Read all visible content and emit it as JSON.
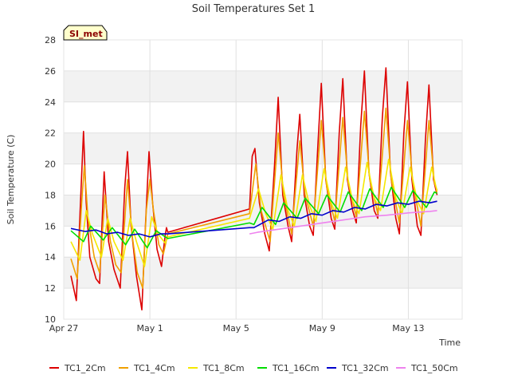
{
  "chart_data": {
    "type": "line",
    "title": "Soil Temperatures Set 1",
    "xlabel": "Time",
    "ylabel": "Soil Temperature (C)",
    "badge": "SI_met",
    "xlim": [
      "2023-04-27",
      "2023-05-15T12:00"
    ],
    "ylim": [
      10,
      28
    ],
    "yticks": [
      10,
      12,
      14,
      16,
      18,
      20,
      22,
      24,
      26,
      28
    ],
    "xticks": [
      {
        "date": "2023-04-27",
        "label": "Apr 27"
      },
      {
        "date": "2023-05-01",
        "label": "May 1"
      },
      {
        "date": "2023-05-05",
        "label": "May 5"
      },
      {
        "date": "2023-05-09",
        "label": "May 9"
      },
      {
        "date": "2023-05-13",
        "label": "May 13"
      }
    ],
    "grid": true,
    "legend_position": "bottom",
    "series": [
      {
        "name": "TC1_2Cm",
        "color": "#dd0000",
        "points": [
          [
            "2023-04-27T08:00",
            12.8
          ],
          [
            "2023-04-27T14:00",
            11.2
          ],
          [
            "2023-04-27T19:00",
            18.0
          ],
          [
            "2023-04-27T22:00",
            22.1
          ],
          [
            "2023-04-28T01:00",
            17.5
          ],
          [
            "2023-04-28T05:00",
            14.0
          ],
          [
            "2023-04-28T12:00",
            12.6
          ],
          [
            "2023-04-28T16:00",
            12.3
          ],
          [
            "2023-04-28T21:00",
            19.5
          ],
          [
            "2023-04-29T02:00",
            15.0
          ],
          [
            "2023-04-29T08:00",
            13.2
          ],
          [
            "2023-04-29T15:00",
            12.0
          ],
          [
            "2023-04-29T20:00",
            18.5
          ],
          [
            "2023-04-29T23:00",
            20.8
          ],
          [
            "2023-04-30T03:00",
            16.0
          ],
          [
            "2023-04-30T09:00",
            12.8
          ],
          [
            "2023-04-30T15:00",
            10.6
          ],
          [
            "2023-04-30T19:00",
            16.0
          ],
          [
            "2023-04-30T23:00",
            20.8
          ],
          [
            "2023-05-01T03:00",
            17.5
          ],
          [
            "2023-05-01T08:00",
            14.5
          ],
          [
            "2023-05-01T13:00",
            13.4
          ],
          [
            "2023-05-01T17:00",
            15.4
          ],
          [
            "2023-05-01T18:30",
            15.9
          ],
          [
            "2023-05-01T20:00",
            15.6
          ],
          [
            "2023-05-05T15:00",
            17.1
          ],
          [
            "2023-05-05T18:00",
            20.5
          ],
          [
            "2023-05-05T21:00",
            21.0
          ],
          [
            "2023-05-06T02:00",
            17.5
          ],
          [
            "2023-05-06T08:00",
            15.5
          ],
          [
            "2023-05-06T13:00",
            14.4
          ],
          [
            "2023-05-06T19:00",
            20.0
          ],
          [
            "2023-05-06T23:00",
            24.3
          ],
          [
            "2023-05-07T04:00",
            18.0
          ],
          [
            "2023-05-07T10:00",
            16.0
          ],
          [
            "2023-05-07T14:00",
            15.0
          ],
          [
            "2023-05-07T20:00",
            21.0
          ],
          [
            "2023-05-07T23:00",
            23.2
          ],
          [
            "2023-05-08T04:00",
            18.0
          ],
          [
            "2023-05-08T10:00",
            16.0
          ],
          [
            "2023-05-08T14:00",
            15.4
          ],
          [
            "2023-05-08T19:00",
            21.0
          ],
          [
            "2023-05-08T23:00",
            25.2
          ],
          [
            "2023-05-09T04:00",
            19.0
          ],
          [
            "2023-05-09T10:00",
            16.5
          ],
          [
            "2023-05-09T14:00",
            15.8
          ],
          [
            "2023-05-09T19:00",
            22.0
          ],
          [
            "2023-05-09T23:00",
            25.5
          ],
          [
            "2023-05-10T04:00",
            19.0
          ],
          [
            "2023-05-10T10:00",
            17.0
          ],
          [
            "2023-05-10T14:00",
            16.2
          ],
          [
            "2023-05-10T19:00",
            22.5
          ],
          [
            "2023-05-10T23:00",
            26.0
          ],
          [
            "2023-05-11T04:00",
            19.5
          ],
          [
            "2023-05-11T10:00",
            17.0
          ],
          [
            "2023-05-11T14:00",
            16.5
          ],
          [
            "2023-05-11T19:00",
            23.0
          ],
          [
            "2023-05-11T23:00",
            26.2
          ],
          [
            "2023-05-12T04:00",
            19.5
          ],
          [
            "2023-05-12T10:00",
            16.5
          ],
          [
            "2023-05-12T14:00",
            15.5
          ],
          [
            "2023-05-12T19:00",
            22.0
          ],
          [
            "2023-05-12T23:00",
            25.3
          ],
          [
            "2023-05-13T04:00",
            19.0
          ],
          [
            "2023-05-13T10:00",
            16.0
          ],
          [
            "2023-05-13T14:00",
            15.4
          ],
          [
            "2023-05-13T19:00",
            21.5
          ],
          [
            "2023-05-13T23:00",
            25.1
          ],
          [
            "2023-05-14T04:00",
            19.0
          ],
          [
            "2023-05-14T08:00",
            18.0
          ]
        ]
      },
      {
        "name": "TC1_4Cm",
        "color": "#f0a000",
        "points": [
          [
            "2023-04-27T08:00",
            13.9
          ],
          [
            "2023-04-27T15:00",
            12.6
          ],
          [
            "2023-04-27T20:00",
            17.5
          ],
          [
            "2023-04-27T23:00",
            19.9
          ],
          [
            "2023-04-28T03:00",
            16.5
          ],
          [
            "2023-04-28T10:00",
            14.0
          ],
          [
            "2023-04-28T16:00",
            13.0
          ],
          [
            "2023-04-28T22:00",
            18.0
          ],
          [
            "2023-04-29T04:00",
            15.0
          ],
          [
            "2023-04-29T10:00",
            13.5
          ],
          [
            "2023-04-29T16:00",
            13.0
          ],
          [
            "2023-04-29T23:00",
            19.0
          ],
          [
            "2023-04-30T04:00",
            15.5
          ],
          [
            "2023-04-30T10:00",
            13.0
          ],
          [
            "2023-04-30T16:00",
            12.0
          ],
          [
            "2023-04-30T20:00",
            17.0
          ],
          [
            "2023-05-01T00:00",
            19.0
          ],
          [
            "2023-05-01T04:00",
            17.0
          ],
          [
            "2023-05-01T10:00",
            14.8
          ],
          [
            "2023-05-01T15:00",
            14.2
          ],
          [
            "2023-05-01T20:00",
            15.5
          ],
          [
            "2023-05-05T15:00",
            16.8
          ],
          [
            "2023-05-05T22:00",
            20.0
          ],
          [
            "2023-05-06T04:00",
            17.0
          ],
          [
            "2023-05-06T14:00",
            15.0
          ],
          [
            "2023-05-06T23:00",
            22.0
          ],
          [
            "2023-05-07T05:00",
            18.0
          ],
          [
            "2023-05-07T14:00",
            15.5
          ],
          [
            "2023-05-07T23:00",
            21.5
          ],
          [
            "2023-05-08T05:00",
            18.0
          ],
          [
            "2023-05-08T14:00",
            16.0
          ],
          [
            "2023-05-08T23:00",
            22.8
          ],
          [
            "2023-05-09T05:00",
            18.5
          ],
          [
            "2023-05-09T14:00",
            16.3
          ],
          [
            "2023-05-09T23:00",
            23.0
          ],
          [
            "2023-05-10T05:00",
            18.8
          ],
          [
            "2023-05-10T14:00",
            16.6
          ],
          [
            "2023-05-10T23:00",
            23.4
          ],
          [
            "2023-05-11T05:00",
            19.0
          ],
          [
            "2023-05-11T14:00",
            16.8
          ],
          [
            "2023-05-11T23:00",
            23.6
          ],
          [
            "2023-05-12T05:00",
            19.0
          ],
          [
            "2023-05-12T14:00",
            16.2
          ],
          [
            "2023-05-12T23:00",
            22.8
          ],
          [
            "2023-05-13T05:00",
            18.8
          ],
          [
            "2023-05-13T14:00",
            16.0
          ],
          [
            "2023-05-13T23:00",
            22.8
          ],
          [
            "2023-05-14T05:00",
            18.8
          ],
          [
            "2023-05-14T08:00",
            18.3
          ]
        ]
      },
      {
        "name": "TC1_8Cm",
        "color": "#f5e800",
        "points": [
          [
            "2023-04-27T08:00",
            15.0
          ],
          [
            "2023-04-27T18:00",
            13.8
          ],
          [
            "2023-04-28T01:00",
            17.0
          ],
          [
            "2023-04-28T08:00",
            15.5
          ],
          [
            "2023-04-28T18:00",
            14.0
          ],
          [
            "2023-04-29T01:00",
            16.5
          ],
          [
            "2023-04-29T08:00",
            15.0
          ],
          [
            "2023-04-29T18:00",
            13.8
          ],
          [
            "2023-04-30T02:00",
            16.5
          ],
          [
            "2023-04-30T09:00",
            15.0
          ],
          [
            "2023-04-30T18:00",
            13.4
          ],
          [
            "2023-05-01T02:00",
            16.6
          ],
          [
            "2023-05-01T09:00",
            15.5
          ],
          [
            "2023-05-01T17:00",
            14.9
          ],
          [
            "2023-05-01T20:00",
            15.3
          ],
          [
            "2023-05-05T15:00",
            16.5
          ],
          [
            "2023-05-06T01:00",
            18.4
          ],
          [
            "2023-05-06T09:00",
            16.8
          ],
          [
            "2023-05-06T17:00",
            15.8
          ],
          [
            "2023-05-07T02:00",
            19.3
          ],
          [
            "2023-05-07T10:00",
            17.0
          ],
          [
            "2023-05-07T17:00",
            16.0
          ],
          [
            "2023-05-08T02:00",
            19.3
          ],
          [
            "2023-05-08T10:00",
            17.3
          ],
          [
            "2023-05-08T17:00",
            16.3
          ],
          [
            "2023-05-09T02:00",
            19.7
          ],
          [
            "2023-05-09T10:00",
            17.5
          ],
          [
            "2023-05-09T17:00",
            16.5
          ],
          [
            "2023-05-10T02:00",
            19.8
          ],
          [
            "2023-05-10T10:00",
            17.6
          ],
          [
            "2023-05-10T17:00",
            16.8
          ],
          [
            "2023-05-11T02:00",
            20.1
          ],
          [
            "2023-05-11T10:00",
            17.8
          ],
          [
            "2023-05-11T17:00",
            17.0
          ],
          [
            "2023-05-12T02:00",
            20.3
          ],
          [
            "2023-05-12T10:00",
            17.8
          ],
          [
            "2023-05-12T17:00",
            16.8
          ],
          [
            "2023-05-13T02:00",
            19.8
          ],
          [
            "2023-05-13T10:00",
            17.6
          ],
          [
            "2023-05-13T17:00",
            16.8
          ],
          [
            "2023-05-14T02:00",
            19.8
          ],
          [
            "2023-05-14T08:00",
            18.2
          ]
        ]
      },
      {
        "name": "TC1_16Cm",
        "color": "#00dd00",
        "points": [
          [
            "2023-04-27T08:00",
            15.7
          ],
          [
            "2023-04-27T22:00",
            15.0
          ],
          [
            "2023-04-28T06:00",
            16.0
          ],
          [
            "2023-04-28T20:00",
            15.1
          ],
          [
            "2023-04-29T06:00",
            15.9
          ],
          [
            "2023-04-29T21:00",
            14.8
          ],
          [
            "2023-04-30T07:00",
            15.8
          ],
          [
            "2023-04-30T21:00",
            14.6
          ],
          [
            "2023-05-01T07:00",
            15.7
          ],
          [
            "2023-05-01T20:00",
            15.2
          ],
          [
            "2023-05-05T15:00",
            16.2
          ],
          [
            "2023-05-05T20:00",
            16.1
          ],
          [
            "2023-05-06T05:00",
            17.2
          ],
          [
            "2023-05-06T20:00",
            16.1
          ],
          [
            "2023-05-07T05:00",
            17.5
          ],
          [
            "2023-05-07T20:00",
            16.5
          ],
          [
            "2023-05-08T05:00",
            17.8
          ],
          [
            "2023-05-08T20:00",
            16.8
          ],
          [
            "2023-05-09T05:00",
            18.0
          ],
          [
            "2023-05-09T20:00",
            16.9
          ],
          [
            "2023-05-10T05:00",
            18.2
          ],
          [
            "2023-05-10T20:00",
            17.0
          ],
          [
            "2023-05-11T05:00",
            18.4
          ],
          [
            "2023-05-11T20:00",
            17.2
          ],
          [
            "2023-05-12T05:00",
            18.5
          ],
          [
            "2023-05-12T20:00",
            17.2
          ],
          [
            "2023-05-13T05:00",
            18.3
          ],
          [
            "2023-05-13T20:00",
            17.2
          ],
          [
            "2023-05-14T05:00",
            18.2
          ],
          [
            "2023-05-14T08:00",
            18.1
          ]
        ]
      },
      {
        "name": "TC1_32Cm",
        "color": "#0000cc",
        "points": [
          [
            "2023-04-27T08:00",
            15.85
          ],
          [
            "2023-04-28T00:00",
            15.65
          ],
          [
            "2023-04-28T12:00",
            15.75
          ],
          [
            "2023-04-29T00:00",
            15.5
          ],
          [
            "2023-04-29T12:00",
            15.6
          ],
          [
            "2023-04-30T00:00",
            15.4
          ],
          [
            "2023-04-30T12:00",
            15.5
          ],
          [
            "2023-05-01T00:00",
            15.3
          ],
          [
            "2023-05-01T12:00",
            15.5
          ],
          [
            "2023-05-01T20:00",
            15.5
          ],
          [
            "2023-05-05T15:00",
            15.9
          ],
          [
            "2023-05-05T20:00",
            15.9
          ],
          [
            "2023-05-06T12:00",
            16.4
          ],
          [
            "2023-05-07T00:00",
            16.3
          ],
          [
            "2023-05-07T12:00",
            16.6
          ],
          [
            "2023-05-08T00:00",
            16.5
          ],
          [
            "2023-05-08T12:00",
            16.8
          ],
          [
            "2023-05-09T00:00",
            16.7
          ],
          [
            "2023-05-09T12:00",
            17.0
          ],
          [
            "2023-05-10T00:00",
            16.9
          ],
          [
            "2023-05-10T12:00",
            17.2
          ],
          [
            "2023-05-11T00:00",
            17.1
          ],
          [
            "2023-05-11T12:00",
            17.4
          ],
          [
            "2023-05-12T00:00",
            17.3
          ],
          [
            "2023-05-12T12:00",
            17.5
          ],
          [
            "2023-05-13T00:00",
            17.4
          ],
          [
            "2023-05-13T12:00",
            17.6
          ],
          [
            "2023-05-14T00:00",
            17.5
          ],
          [
            "2023-05-14T08:00",
            17.6
          ]
        ]
      },
      {
        "name": "TC1_50Cm",
        "color": "#ee82ee",
        "points": [
          [
            "2023-05-05T15:00",
            15.5
          ],
          [
            "2023-05-06T00:00",
            15.6
          ],
          [
            "2023-05-07T00:00",
            15.8
          ],
          [
            "2023-05-08T00:00",
            16.0
          ],
          [
            "2023-05-09T00:00",
            16.2
          ],
          [
            "2023-05-10T00:00",
            16.4
          ],
          [
            "2023-05-11T00:00",
            16.6
          ],
          [
            "2023-05-12T00:00",
            16.7
          ],
          [
            "2023-05-13T00:00",
            16.85
          ],
          [
            "2023-05-14T00:00",
            16.95
          ],
          [
            "2023-05-14T08:00",
            17.0
          ]
        ]
      }
    ]
  }
}
